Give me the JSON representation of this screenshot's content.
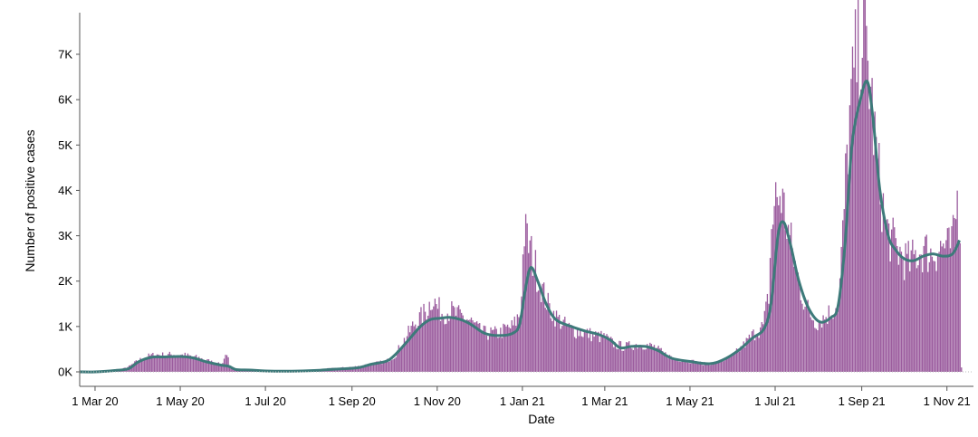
{
  "chart_data": {
    "type": "bar",
    "xlabel": "Date",
    "ylabel": "Number of positive cases",
    "x_range": [
      "2020-02-19",
      "2021-11-20"
    ],
    "ylim": [
      0,
      7800
    ],
    "y_ticks": [
      {
        "value": 0,
        "label": "0K"
      },
      {
        "value": 1000,
        "label": "1K"
      },
      {
        "value": 2000,
        "label": "2K"
      },
      {
        "value": 3000,
        "label": "3K"
      },
      {
        "value": 4000,
        "label": "4K"
      },
      {
        "value": 5000,
        "label": "5K"
      },
      {
        "value": 6000,
        "label": "6K"
      },
      {
        "value": 7000,
        "label": "7K"
      }
    ],
    "x_ticks": [
      {
        "date": "2020-03-01",
        "label": "1 Mar 20"
      },
      {
        "date": "2020-05-01",
        "label": "1 May 20"
      },
      {
        "date": "2020-07-01",
        "label": "1 Jul 20"
      },
      {
        "date": "2020-09-01",
        "label": "1 Sep 20"
      },
      {
        "date": "2020-11-01",
        "label": "1 Nov 20"
      },
      {
        "date": "2021-01-01",
        "label": "1 Jan 21"
      },
      {
        "date": "2021-03-01",
        "label": "1 Mar 21"
      },
      {
        "date": "2021-05-01",
        "label": "1 May 21"
      },
      {
        "date": "2021-07-01",
        "label": "1 Jul 21"
      },
      {
        "date": "2021-09-01",
        "label": "1 Sep 21"
      },
      {
        "date": "2021-11-01",
        "label": "1 Nov 21"
      }
    ],
    "grid": false,
    "colors": {
      "bars": "#9b5c9e",
      "trend": "#3d7a7a"
    },
    "series": [
      {
        "kind": "daily_bars",
        "points": [
          {
            "date": "2020-03-01",
            "value": 0
          },
          {
            "date": "2020-03-05",
            "value": 5
          },
          {
            "date": "2020-03-10",
            "value": 15
          },
          {
            "date": "2020-03-15",
            "value": 35
          },
          {
            "date": "2020-03-20",
            "value": 60
          },
          {
            "date": "2020-03-25",
            "value": 120
          },
          {
            "date": "2020-03-30",
            "value": 220
          },
          {
            "date": "2020-04-05",
            "value": 320
          },
          {
            "date": "2020-04-10",
            "value": 360
          },
          {
            "date": "2020-04-15",
            "value": 380
          },
          {
            "date": "2020-04-20",
            "value": 360
          },
          {
            "date": "2020-04-25",
            "value": 390
          },
          {
            "date": "2020-05-01",
            "value": 370
          },
          {
            "date": "2020-05-05",
            "value": 360
          },
          {
            "date": "2020-05-10",
            "value": 330
          },
          {
            "date": "2020-05-15",
            "value": 300
          },
          {
            "date": "2020-05-20",
            "value": 250
          },
          {
            "date": "2020-05-25",
            "value": 200
          },
          {
            "date": "2020-05-30",
            "value": 160
          },
          {
            "date": "2020-06-03",
            "value": 430
          },
          {
            "date": "2020-06-05",
            "value": 120
          },
          {
            "date": "2020-06-10",
            "value": 60
          },
          {
            "date": "2020-06-20",
            "value": 40
          },
          {
            "date": "2020-07-01",
            "value": 30
          },
          {
            "date": "2020-07-15",
            "value": 30
          },
          {
            "date": "2020-08-01",
            "value": 40
          },
          {
            "date": "2020-08-15",
            "value": 70
          },
          {
            "date": "2020-08-25",
            "value": 90
          },
          {
            "date": "2020-09-05",
            "value": 120
          },
          {
            "date": "2020-09-15",
            "value": 180
          },
          {
            "date": "2020-09-25",
            "value": 230
          },
          {
            "date": "2020-10-01",
            "value": 350
          },
          {
            "date": "2020-10-05",
            "value": 550
          },
          {
            "date": "2020-10-10",
            "value": 800
          },
          {
            "date": "2020-10-15",
            "value": 1050
          },
          {
            "date": "2020-10-20",
            "value": 1200
          },
          {
            "date": "2020-10-25",
            "value": 1400
          },
          {
            "date": "2020-10-28",
            "value": 1650
          },
          {
            "date": "2020-11-01",
            "value": 1400
          },
          {
            "date": "2020-11-05",
            "value": 1300
          },
          {
            "date": "2020-11-10",
            "value": 1350
          },
          {
            "date": "2020-11-15",
            "value": 1250
          },
          {
            "date": "2020-11-20",
            "value": 1200
          },
          {
            "date": "2020-11-25",
            "value": 1100
          },
          {
            "date": "2020-12-01",
            "value": 900
          },
          {
            "date": "2020-12-05",
            "value": 850
          },
          {
            "date": "2020-12-10",
            "value": 850
          },
          {
            "date": "2020-12-15",
            "value": 850
          },
          {
            "date": "2020-12-20",
            "value": 950
          },
          {
            "date": "2020-12-25",
            "value": 1000
          },
          {
            "date": "2020-12-30",
            "value": 1300
          },
          {
            "date": "2021-01-02",
            "value": 3100
          },
          {
            "date": "2021-01-05",
            "value": 2800
          },
          {
            "date": "2021-01-08",
            "value": 2500
          },
          {
            "date": "2021-01-12",
            "value": 2100
          },
          {
            "date": "2021-01-16",
            "value": 1700
          },
          {
            "date": "2021-01-20",
            "value": 1400
          },
          {
            "date": "2021-01-25",
            "value": 1200
          },
          {
            "date": "2021-02-01",
            "value": 1000
          },
          {
            "date": "2021-02-08",
            "value": 900
          },
          {
            "date": "2021-02-15",
            "value": 850
          },
          {
            "date": "2021-02-22",
            "value": 800
          },
          {
            "date": "2021-03-01",
            "value": 750
          },
          {
            "date": "2021-03-08",
            "value": 600
          },
          {
            "date": "2021-03-15",
            "value": 550
          },
          {
            "date": "2021-03-22",
            "value": 600
          },
          {
            "date": "2021-03-29",
            "value": 600
          },
          {
            "date": "2021-04-05",
            "value": 550
          },
          {
            "date": "2021-04-12",
            "value": 400
          },
          {
            "date": "2021-04-19",
            "value": 300
          },
          {
            "date": "2021-04-26",
            "value": 250
          },
          {
            "date": "2021-05-03",
            "value": 230
          },
          {
            "date": "2021-05-10",
            "value": 180
          },
          {
            "date": "2021-05-17",
            "value": 180
          },
          {
            "date": "2021-05-24",
            "value": 250
          },
          {
            "date": "2021-05-31",
            "value": 350
          },
          {
            "date": "2021-06-07",
            "value": 550
          },
          {
            "date": "2021-06-14",
            "value": 800
          },
          {
            "date": "2021-06-18",
            "value": 900
          },
          {
            "date": "2021-06-22",
            "value": 1000
          },
          {
            "date": "2021-06-26",
            "value": 1700
          },
          {
            "date": "2021-06-28",
            "value": 3200
          },
          {
            "date": "2021-07-01",
            "value": 3800
          },
          {
            "date": "2021-07-05",
            "value": 3900
          },
          {
            "date": "2021-07-08",
            "value": 3400
          },
          {
            "date": "2021-07-12",
            "value": 2800
          },
          {
            "date": "2021-07-16",
            "value": 2200
          },
          {
            "date": "2021-07-20",
            "value": 1700
          },
          {
            "date": "2021-07-25",
            "value": 1300
          },
          {
            "date": "2021-07-30",
            "value": 1100
          },
          {
            "date": "2021-08-05",
            "value": 1200
          },
          {
            "date": "2021-08-10",
            "value": 1350
          },
          {
            "date": "2021-08-15",
            "value": 1500
          },
          {
            "date": "2021-08-18",
            "value": 3000
          },
          {
            "date": "2021-08-20",
            "value": 4200
          },
          {
            "date": "2021-08-23",
            "value": 5600
          },
          {
            "date": "2021-08-26",
            "value": 6500
          },
          {
            "date": "2021-08-29",
            "value": 7200
          },
          {
            "date": "2021-09-01",
            "value": 7500
          },
          {
            "date": "2021-09-04",
            "value": 7000
          },
          {
            "date": "2021-09-07",
            "value": 6200
          },
          {
            "date": "2021-09-10",
            "value": 5100
          },
          {
            "date": "2021-09-14",
            "value": 4000
          },
          {
            "date": "2021-09-18",
            "value": 3200
          },
          {
            "date": "2021-09-22",
            "value": 2900
          },
          {
            "date": "2021-09-26",
            "value": 2700
          },
          {
            "date": "2021-10-01",
            "value": 2500
          },
          {
            "date": "2021-10-05",
            "value": 2400
          },
          {
            "date": "2021-10-10",
            "value": 2600
          },
          {
            "date": "2021-10-15",
            "value": 2700
          },
          {
            "date": "2021-10-20",
            "value": 2600
          },
          {
            "date": "2021-10-25",
            "value": 2700
          },
          {
            "date": "2021-10-30",
            "value": 2800
          },
          {
            "date": "2021-11-02",
            "value": 2700
          },
          {
            "date": "2021-11-05",
            "value": 2900
          },
          {
            "date": "2021-11-08",
            "value": 3800
          },
          {
            "date": "2021-11-10",
            "value": 3100
          },
          {
            "date": "2021-11-11",
            "value": 120
          }
        ]
      },
      {
        "kind": "smoothed_line",
        "points": [
          {
            "date": "2020-02-19",
            "value": 0
          },
          {
            "date": "2020-03-01",
            "value": 0
          },
          {
            "date": "2020-03-15",
            "value": 30
          },
          {
            "date": "2020-03-25",
            "value": 70
          },
          {
            "date": "2020-04-01",
            "value": 220
          },
          {
            "date": "2020-04-10",
            "value": 320
          },
          {
            "date": "2020-04-20",
            "value": 330
          },
          {
            "date": "2020-05-01",
            "value": 340
          },
          {
            "date": "2020-05-10",
            "value": 310
          },
          {
            "date": "2020-05-20",
            "value": 220
          },
          {
            "date": "2020-05-30",
            "value": 150
          },
          {
            "date": "2020-06-05",
            "value": 120
          },
          {
            "date": "2020-06-10",
            "value": 50
          },
          {
            "date": "2020-06-20",
            "value": 40
          },
          {
            "date": "2020-07-01",
            "value": 20
          },
          {
            "date": "2020-07-20",
            "value": 15
          },
          {
            "date": "2020-08-05",
            "value": 30
          },
          {
            "date": "2020-08-20",
            "value": 60
          },
          {
            "date": "2020-09-05",
            "value": 90
          },
          {
            "date": "2020-09-15",
            "value": 170
          },
          {
            "date": "2020-09-25",
            "value": 230
          },
          {
            "date": "2020-10-01",
            "value": 350
          },
          {
            "date": "2020-10-10",
            "value": 650
          },
          {
            "date": "2020-10-20",
            "value": 1000
          },
          {
            "date": "2020-10-27",
            "value": 1150
          },
          {
            "date": "2020-11-03",
            "value": 1180
          },
          {
            "date": "2020-11-10",
            "value": 1200
          },
          {
            "date": "2020-11-18",
            "value": 1150
          },
          {
            "date": "2020-11-25",
            "value": 1050
          },
          {
            "date": "2020-12-05",
            "value": 850
          },
          {
            "date": "2020-12-15",
            "value": 800
          },
          {
            "date": "2020-12-25",
            "value": 850
          },
          {
            "date": "2020-12-30",
            "value": 1050
          },
          {
            "date": "2021-01-03",
            "value": 1800
          },
          {
            "date": "2021-01-07",
            "value": 2300
          },
          {
            "date": "2021-01-12",
            "value": 2000
          },
          {
            "date": "2021-01-18",
            "value": 1500
          },
          {
            "date": "2021-01-25",
            "value": 1150
          },
          {
            "date": "2021-02-05",
            "value": 1000
          },
          {
            "date": "2021-02-15",
            "value": 900
          },
          {
            "date": "2021-02-25",
            "value": 820
          },
          {
            "date": "2021-03-05",
            "value": 700
          },
          {
            "date": "2021-03-12",
            "value": 530
          },
          {
            "date": "2021-03-20",
            "value": 560
          },
          {
            "date": "2021-03-30",
            "value": 560
          },
          {
            "date": "2021-04-08",
            "value": 470
          },
          {
            "date": "2021-04-18",
            "value": 300
          },
          {
            "date": "2021-05-01",
            "value": 230
          },
          {
            "date": "2021-05-15",
            "value": 180
          },
          {
            "date": "2021-05-25",
            "value": 270
          },
          {
            "date": "2021-06-05",
            "value": 480
          },
          {
            "date": "2021-06-15",
            "value": 750
          },
          {
            "date": "2021-06-23",
            "value": 950
          },
          {
            "date": "2021-06-28",
            "value": 1500
          },
          {
            "date": "2021-07-03",
            "value": 3000
          },
          {
            "date": "2021-07-07",
            "value": 3300
          },
          {
            "date": "2021-07-12",
            "value": 2800
          },
          {
            "date": "2021-07-18",
            "value": 2000
          },
          {
            "date": "2021-07-25",
            "value": 1400
          },
          {
            "date": "2021-08-02",
            "value": 1100
          },
          {
            "date": "2021-08-10",
            "value": 1200
          },
          {
            "date": "2021-08-15",
            "value": 1450
          },
          {
            "date": "2021-08-20",
            "value": 2800
          },
          {
            "date": "2021-08-25",
            "value": 5000
          },
          {
            "date": "2021-08-31",
            "value": 6000
          },
          {
            "date": "2021-09-05",
            "value": 6400
          },
          {
            "date": "2021-09-09",
            "value": 5600
          },
          {
            "date": "2021-09-14",
            "value": 4000
          },
          {
            "date": "2021-09-20",
            "value": 3000
          },
          {
            "date": "2021-09-25",
            "value": 2700
          },
          {
            "date": "2021-10-01",
            "value": 2500
          },
          {
            "date": "2021-10-08",
            "value": 2450
          },
          {
            "date": "2021-10-15",
            "value": 2550
          },
          {
            "date": "2021-10-22",
            "value": 2600
          },
          {
            "date": "2021-10-29",
            "value": 2550
          },
          {
            "date": "2021-11-05",
            "value": 2600
          },
          {
            "date": "2021-11-10",
            "value": 2900
          }
        ]
      }
    ]
  }
}
